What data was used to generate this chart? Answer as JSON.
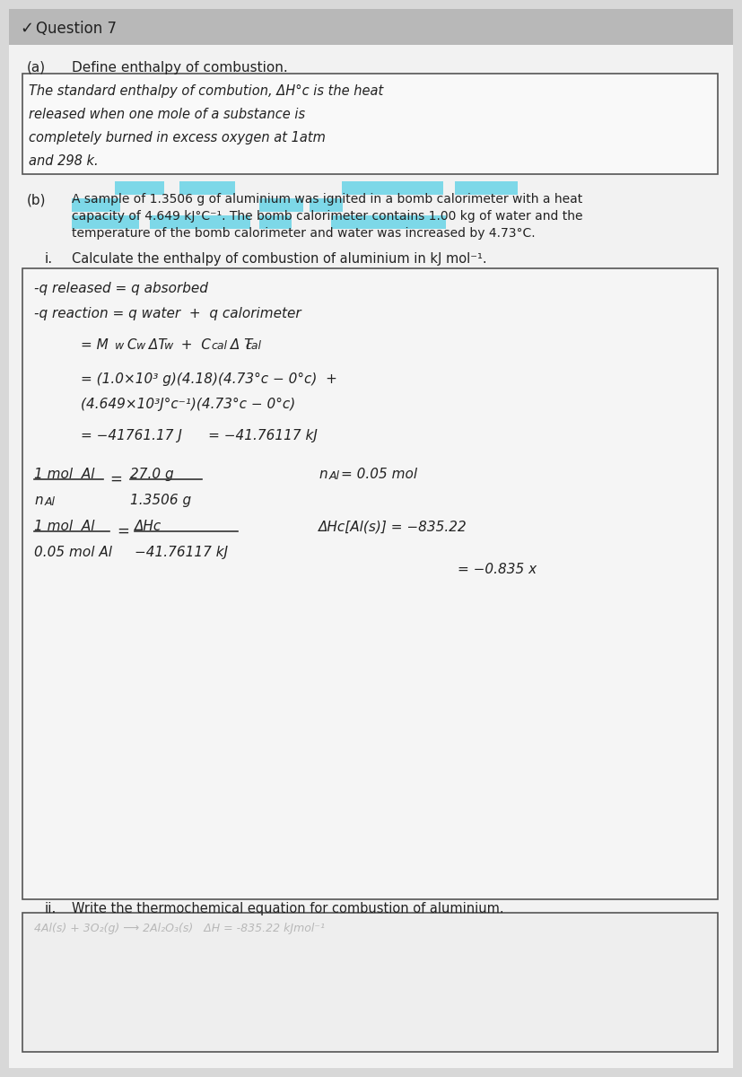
{
  "bg_color": "#d8d8d8",
  "page_bg": "#f2f2f2",
  "header_bar_color": "#b8b8b8",
  "highlight_blue": "#7dd8e8",
  "calc_box_bg": "#f5f5f5",
  "def_box_bg": "#f9f9f9",
  "text_color": "#222222",
  "line_color": "#333333",
  "border_color": "#555555",
  "question_header": "Question 7",
  "part_a_label": "(a)",
  "part_a_text": "Define enthalpy of combustion.",
  "def_line1": "The standard enthalpy of combution, ΔH°c is the heat",
  "def_line2": "released when one mole of a substance is",
  "def_line3": "completely burned in excess oxygen at 1atm",
  "def_line4": "and 298 k.",
  "part_b_label": "(b)",
  "part_b_line1": "A sample of 1.3506 g of aluminium was ignited in a bomb calorimeter with a heat",
  "part_b_line2": "capacity of 4.649 kJ°C⁻¹. The bomb calorimeter contains 1.00 kg of water and the",
  "part_b_line3": "temperature of the bomb calorimeter and water was increased by 4.73°C.",
  "part_i_label": "i.",
  "part_i_text": "Calculate the enthalpy of combustion of aluminium in kJ mol⁻¹.",
  "calc_line1": "-q released = q absorbed",
  "calc_line2": "-q reaction = q water  +  q calorimeter",
  "calc_line3a": "= M",
  "calc_line3b": "w",
  "calc_line3c": " C",
  "calc_line3d": "w",
  "calc_line3e": " ΔT",
  "calc_line3f": "w",
  "calc_line3g": "  +  C",
  "calc_line3h": "cal",
  "calc_line3i": " Δ T",
  "calc_line3j": "cal",
  "calc_line4": "= (1.0×10³ g)(4.18)(4.73°c − 0°c)  +",
  "calc_line5": "(4.649×10³J°c⁻¹)(4.73°c − 0°c)",
  "calc_line6": "= −41761.17 J      = −41.76117 kJ",
  "frac1_num": "1 mol  Al",
  "frac1_den": "n",
  "frac1_den_sub": "Al",
  "frac1_eq": "=",
  "frac2_num": "27.0 g",
  "frac2_den": "1.3506 g",
  "n_al_text": "n",
  "n_al_sub": "Al",
  "n_al_val": "= 0.05 mol",
  "dhc_label": "ΔHc[Al(s)] = −835.22",
  "frac3_num": "1 mol  Al",
  "frac3_den": "0.05 mol Al",
  "frac3_eq": "=",
  "frac4_num": "ΔHc",
  "frac4_den": "−41.76117 kJ",
  "result_text": "= −0.835 x",
  "part_ii_label": "ii.",
  "part_ii_text": "Write the thermochemical equation for combustion of aluminium.",
  "answer_faint": "4Al(s) + 3O₂(g) ⟶ 2Al₂O₃(s)   ΔH = -835.22 kJmol⁻¹"
}
